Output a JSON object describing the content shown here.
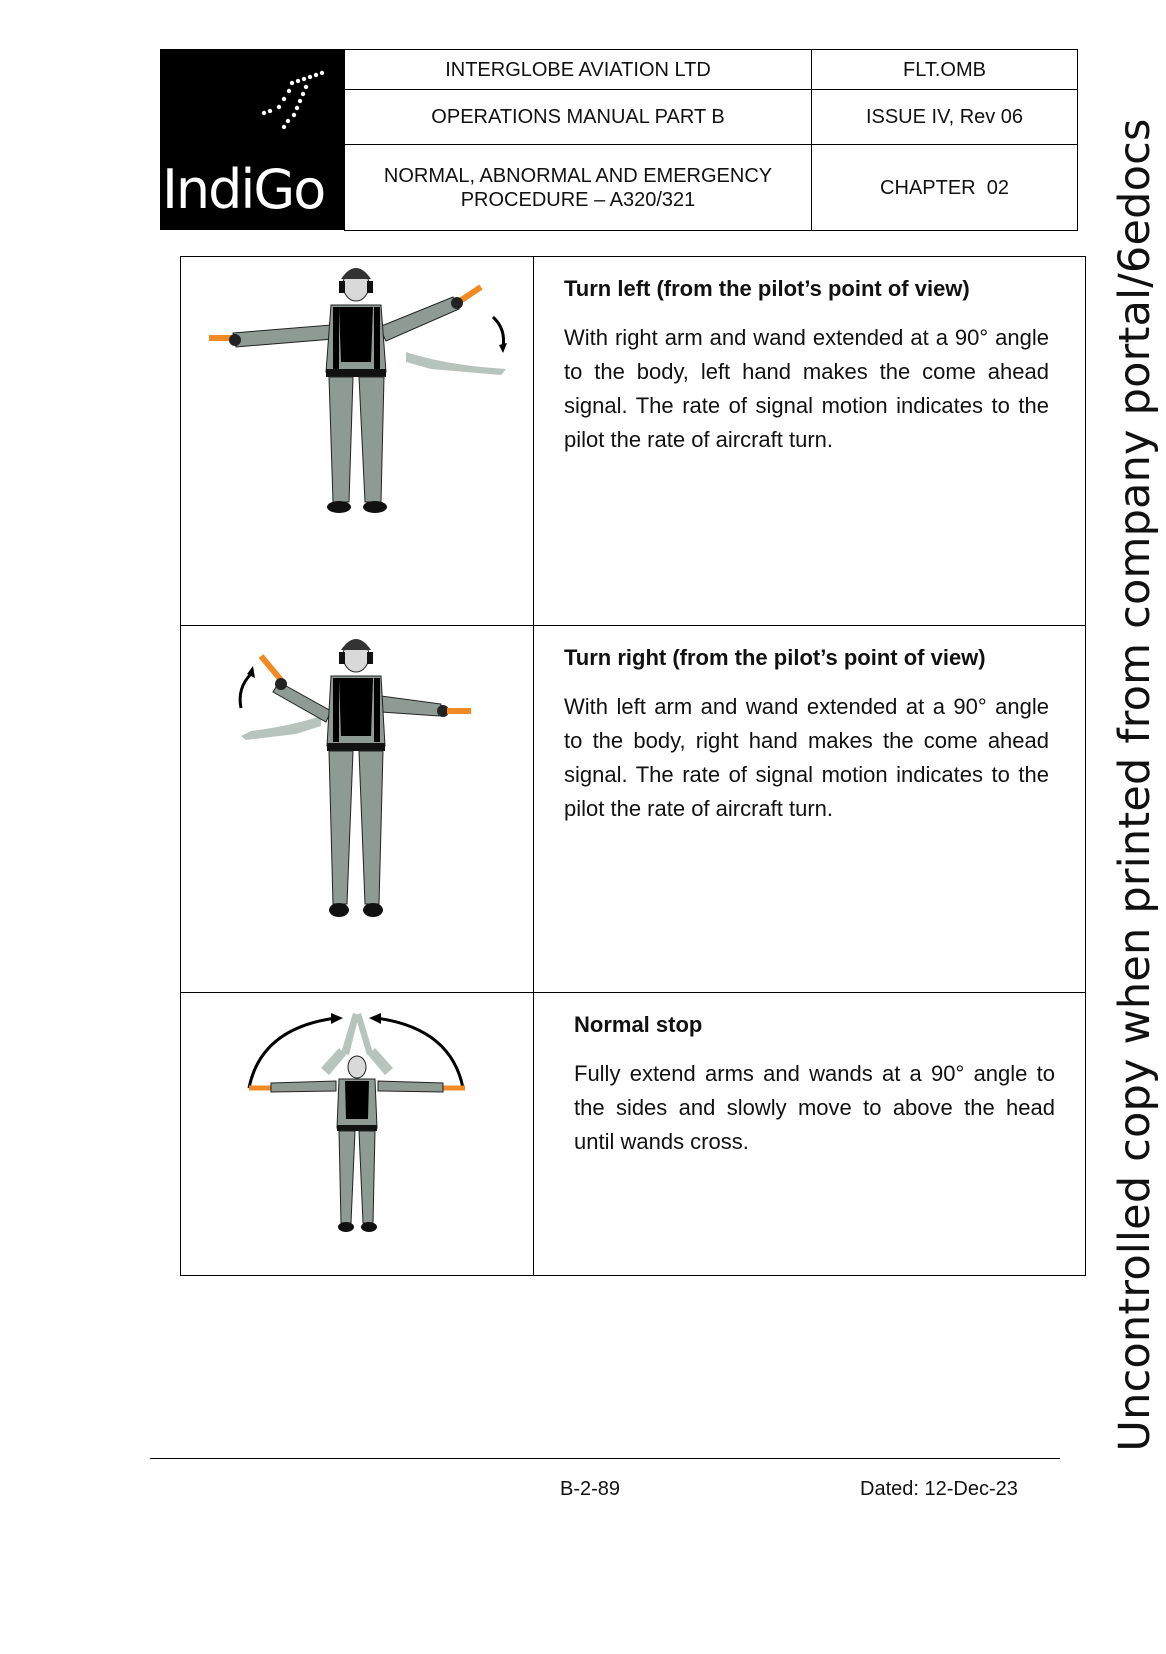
{
  "header": {
    "logo_text": "IndiGo",
    "company": "INTERGLOBE AVIATION LTD",
    "doc_code": "FLT.OMB",
    "manual": "OPERATIONS MANUAL PART B",
    "issue": "ISSUE IV, Rev 06",
    "section_line1": "NORMAL, ABNORMAL AND EMERGENCY",
    "section_line2": "PROCEDURE – A320/321",
    "chapter": "CHAPTER  02"
  },
  "signals": [
    {
      "title": "Turn left (from the pilot’s point of view)",
      "body": "With right arm and wand extended at a 90° angle to the body, left hand makes the come ahead signal. The rate of signal motion indicates to the pilot the rate of aircraft turn."
    },
    {
      "title": "Turn right (from the pilot’s point of view)",
      "body": "With left arm and wand extended at a 90° angle to the body, right hand makes the come ahead signal. The rate of signal motion indicates to the pilot the rate of aircraft turn."
    },
    {
      "title": "Normal stop",
      "body": "Fully extend arms and wands at a 90° angle to the sides and slowly move to above the head until wands cross."
    }
  ],
  "footer": {
    "page": "B-2-89",
    "dated": "Dated: 12-Dec-23"
  },
  "watermark": "Uncontrolled copy when printed from company portal/6edocs",
  "colors": {
    "wand": "#f08a24",
    "suit": "#8e9a94",
    "vest": "#000000"
  }
}
